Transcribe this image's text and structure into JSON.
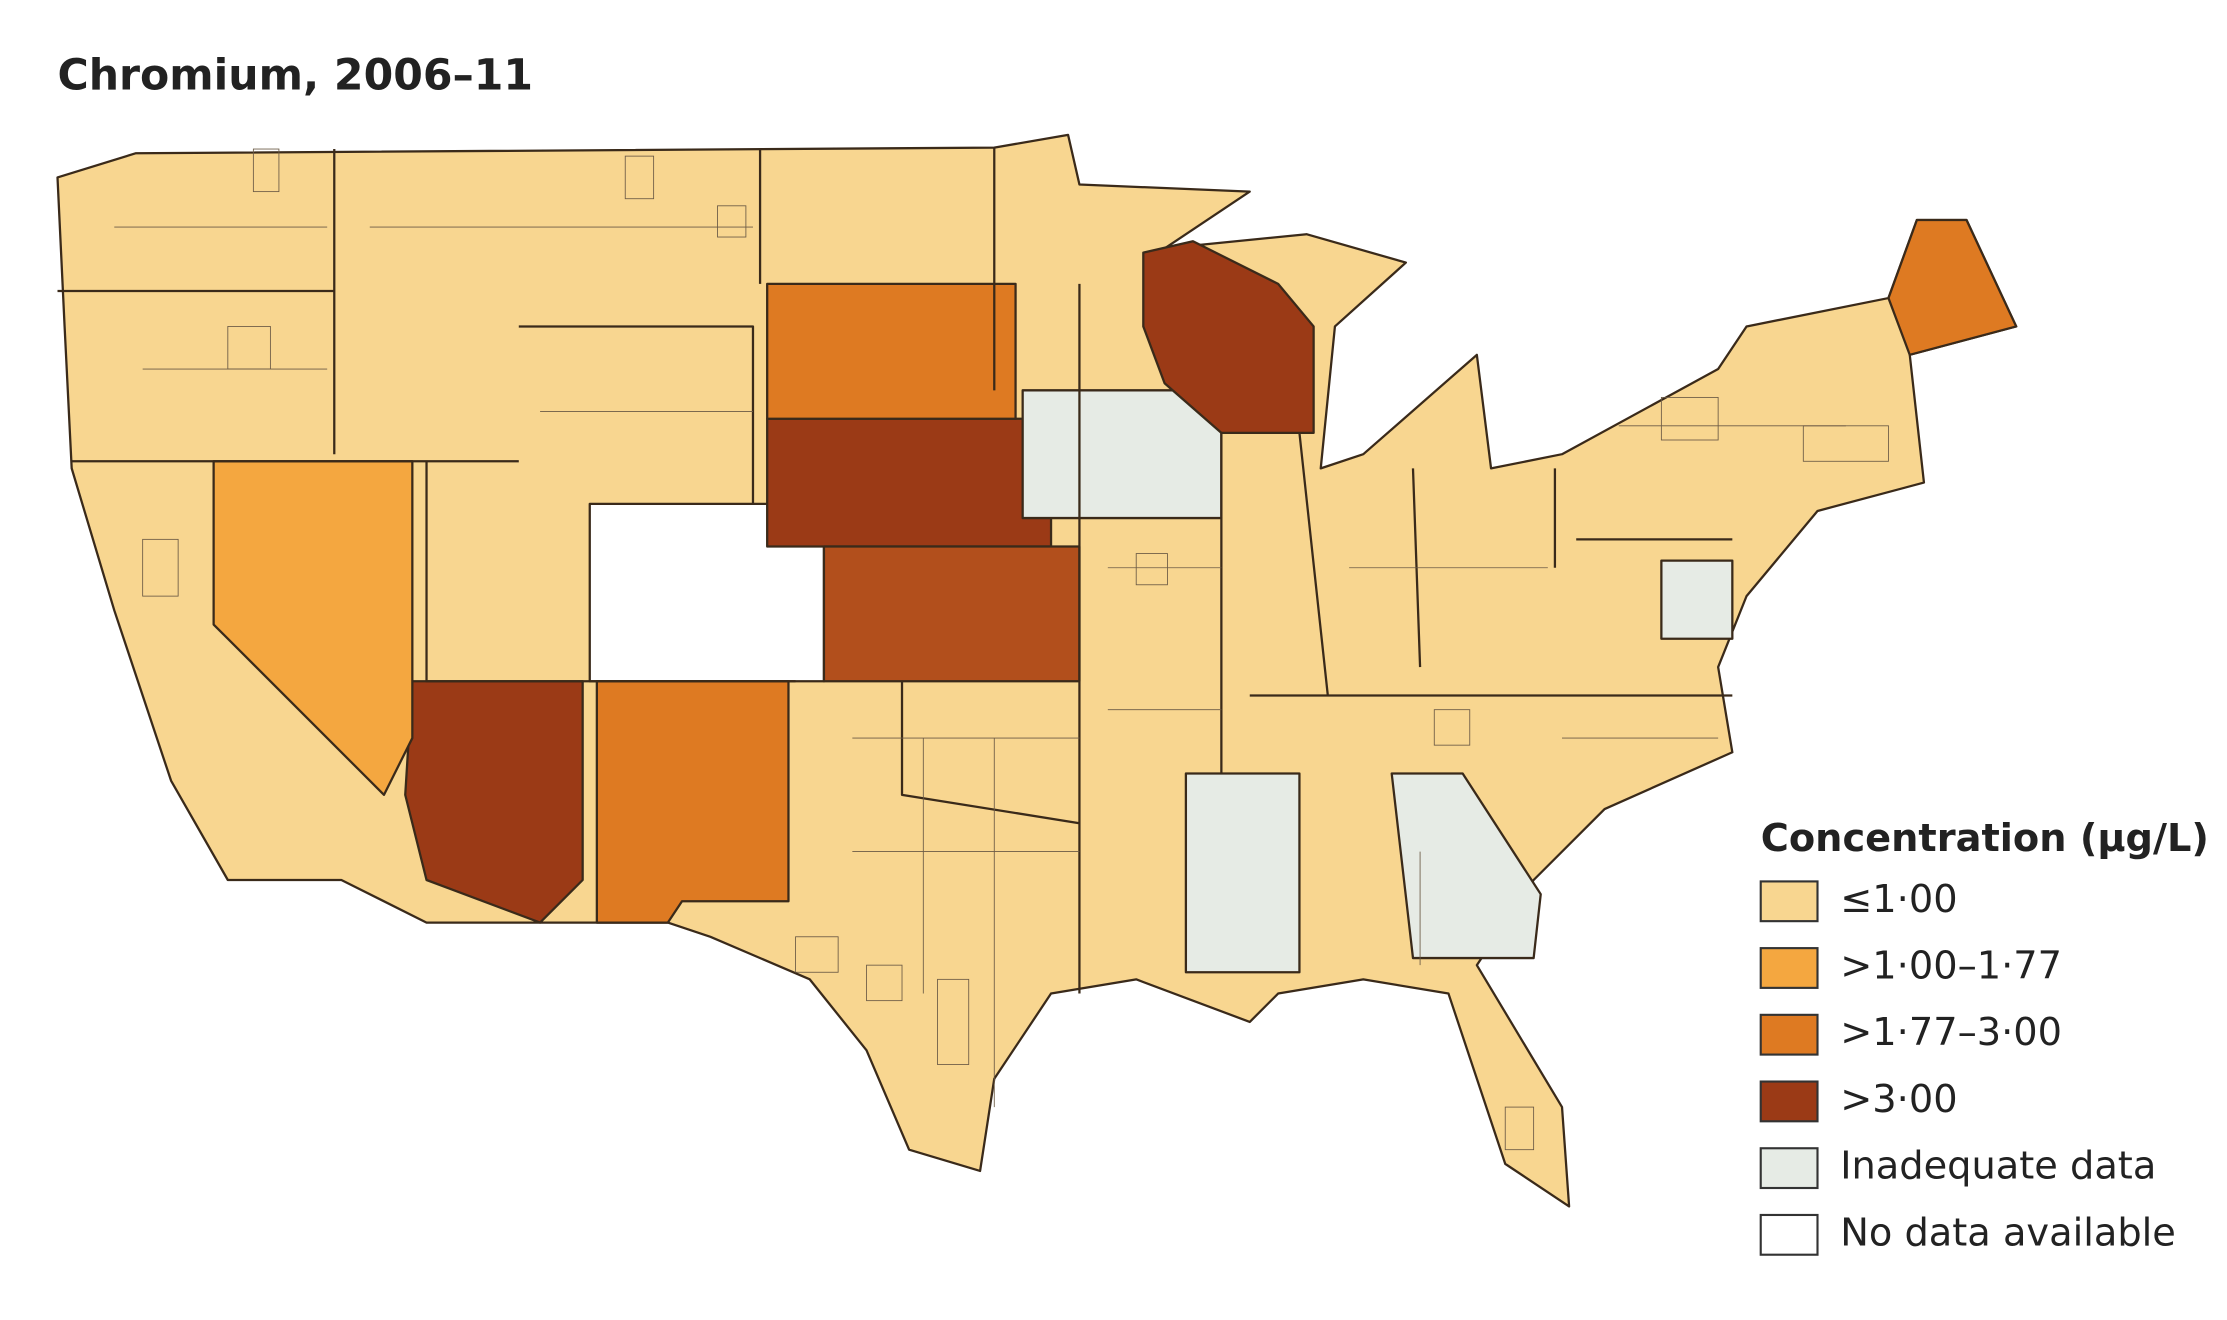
{
  "title": "Chromium, 2006–11",
  "legend": {
    "title": "Concentration (µg/L)",
    "items": [
      {
        "label": "≤1·00",
        "color": "#f8d690"
      },
      {
        "label": ">1·00–1·77",
        "color": "#f4a740"
      },
      {
        "label": ">1·77–3·00",
        "color": "#de7a22"
      },
      {
        "label": ">3·00",
        "color": "#9b3a16"
      },
      {
        "label": "Inadequate data",
        "color": "#e6ebe5"
      },
      {
        "label": "No data available",
        "color": "#ffffff"
      }
    ]
  }
}
